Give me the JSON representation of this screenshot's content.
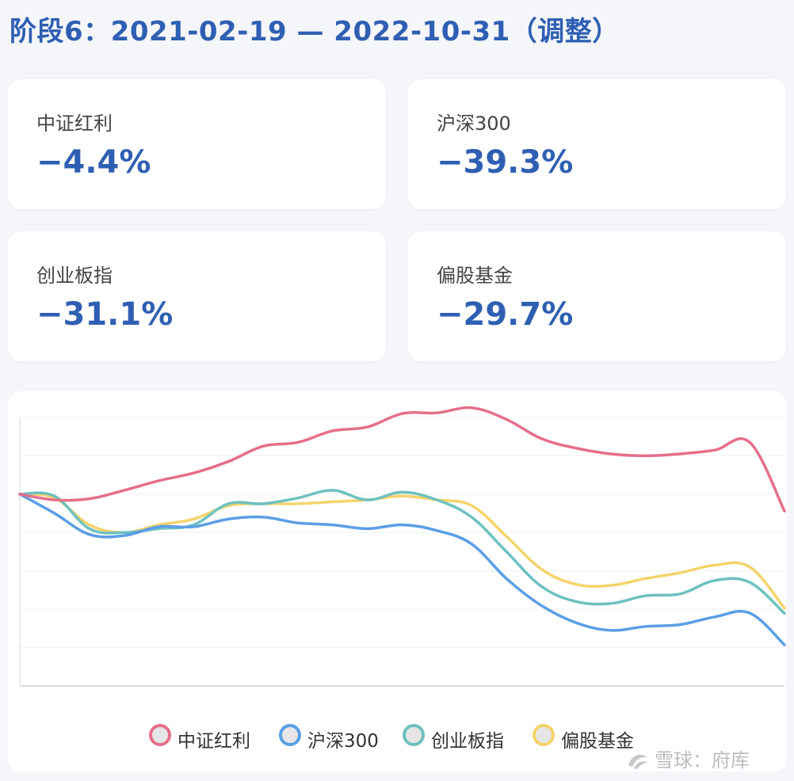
{
  "title": "阶段6：2021-02-19 — 2022-10-31（调整）",
  "cards": [
    {
      "label": "中证红利",
      "value": "−4.4%"
    },
    {
      "label": "沪深300",
      "value": "−39.3%"
    },
    {
      "label": "创业板指",
      "value": "−31.1%"
    },
    {
      "label": "偏股基金",
      "value": "−29.7%"
    }
  ],
  "watermark": "雪球：府库",
  "chart_data": {
    "type": "line",
    "grid": true,
    "legend_position": "bottom",
    "ylim": [
      -50,
      20
    ],
    "series": [
      {
        "name": "中证红利",
        "color": "#e56f8a",
        "values": [
          0,
          -1.5,
          -1.2,
          1,
          3.5,
          5.5,
          8.5,
          12.5,
          13.5,
          16.5,
          17.5,
          21,
          21.2,
          22.5,
          19.5,
          14.5,
          12,
          10.5,
          10,
          10.5,
          11.5,
          13.5,
          -4.4
        ]
      },
      {
        "name": "沪深300",
        "color": "#5b9ee6",
        "values": [
          0,
          -5,
          -10.5,
          -10.8,
          -8.5,
          -8.5,
          -6.5,
          -6,
          -7.5,
          -8,
          -9,
          -8,
          -9.5,
          -13,
          -22,
          -29,
          -33.5,
          -35.5,
          -34.5,
          -34,
          -32,
          -31,
          -39.3
        ]
      },
      {
        "name": "创业板指",
        "color": "#6ec1bf",
        "values": [
          0,
          -0.5,
          -9,
          -10,
          -9,
          -8,
          -2.5,
          -2.5,
          -1,
          1,
          -1.5,
          0.5,
          -1.5,
          -6,
          -15,
          -24,
          -28,
          -28.5,
          -26.5,
          -26,
          -22.5,
          -23,
          -31.1
        ]
      },
      {
        "name": "偏股基金",
        "color": "#f5d36c",
        "values": [
          0,
          -1,
          -8,
          -10,
          -8,
          -6.5,
          -3,
          -2.5,
          -2.5,
          -2,
          -1.5,
          -0.5,
          -1.5,
          -3,
          -11,
          -19.5,
          -23.5,
          -23.8,
          -22,
          -20.5,
          -18.5,
          -19,
          -29.7
        ]
      }
    ]
  }
}
